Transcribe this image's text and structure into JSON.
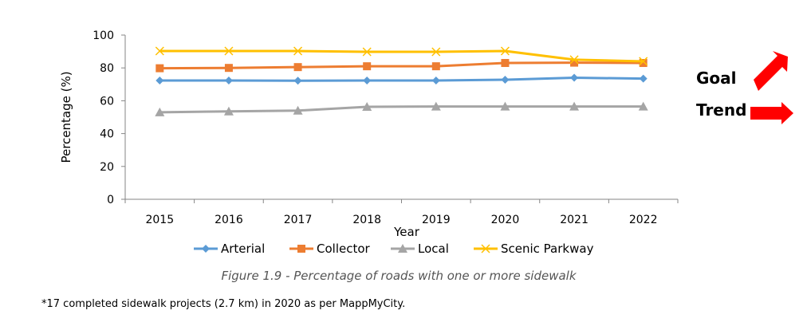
{
  "chart_data": {
    "type": "line",
    "title": "",
    "xlabel": "Year",
    "ylabel": "Percentage (%)",
    "ylim": [
      0,
      100
    ],
    "yticks": [
      0,
      20,
      40,
      60,
      80,
      100
    ],
    "grid": false,
    "legend": "bottom",
    "categories": [
      "2015",
      "2016",
      "2017",
      "2018",
      "2019",
      "2020",
      "2021",
      "2022"
    ],
    "series": [
      {
        "name": "Arterial",
        "color": "#5b9bd5",
        "marker": "diamond",
        "values": [
          72.3,
          72.3,
          72.2,
          72.3,
          72.3,
          72.8,
          74,
          73.5
        ]
      },
      {
        "name": "Collector",
        "color": "#ed7d31",
        "marker": "square",
        "values": [
          79.8,
          80,
          80.5,
          81,
          81,
          83,
          83.2,
          83
        ]
      },
      {
        "name": "Local",
        "color": "#a5a5a5",
        "marker": "triangle",
        "values": [
          53,
          53.5,
          54,
          56.3,
          56.5,
          56.5,
          56.5,
          56.5
        ]
      },
      {
        "name": "Scenic Parkway",
        "color": "#ffc000",
        "marker": "x",
        "values": [
          90.3,
          90.3,
          90.3,
          89.8,
          89.8,
          90.3,
          85,
          84
        ]
      }
    ]
  },
  "caption": "Figure 1.9 - Percentage of roads with one or more sidewalk",
  "footnote": "*17 completed sidewalk projects (2.7 km) in 2020 as per MappMyCity.",
  "indicators": {
    "goal_label": "Goal",
    "goal_icon": "arrow-up-right-icon",
    "trend_label": "Trend",
    "trend_icon": "arrow-right-icon",
    "arrow_color": "#ff0000"
  }
}
